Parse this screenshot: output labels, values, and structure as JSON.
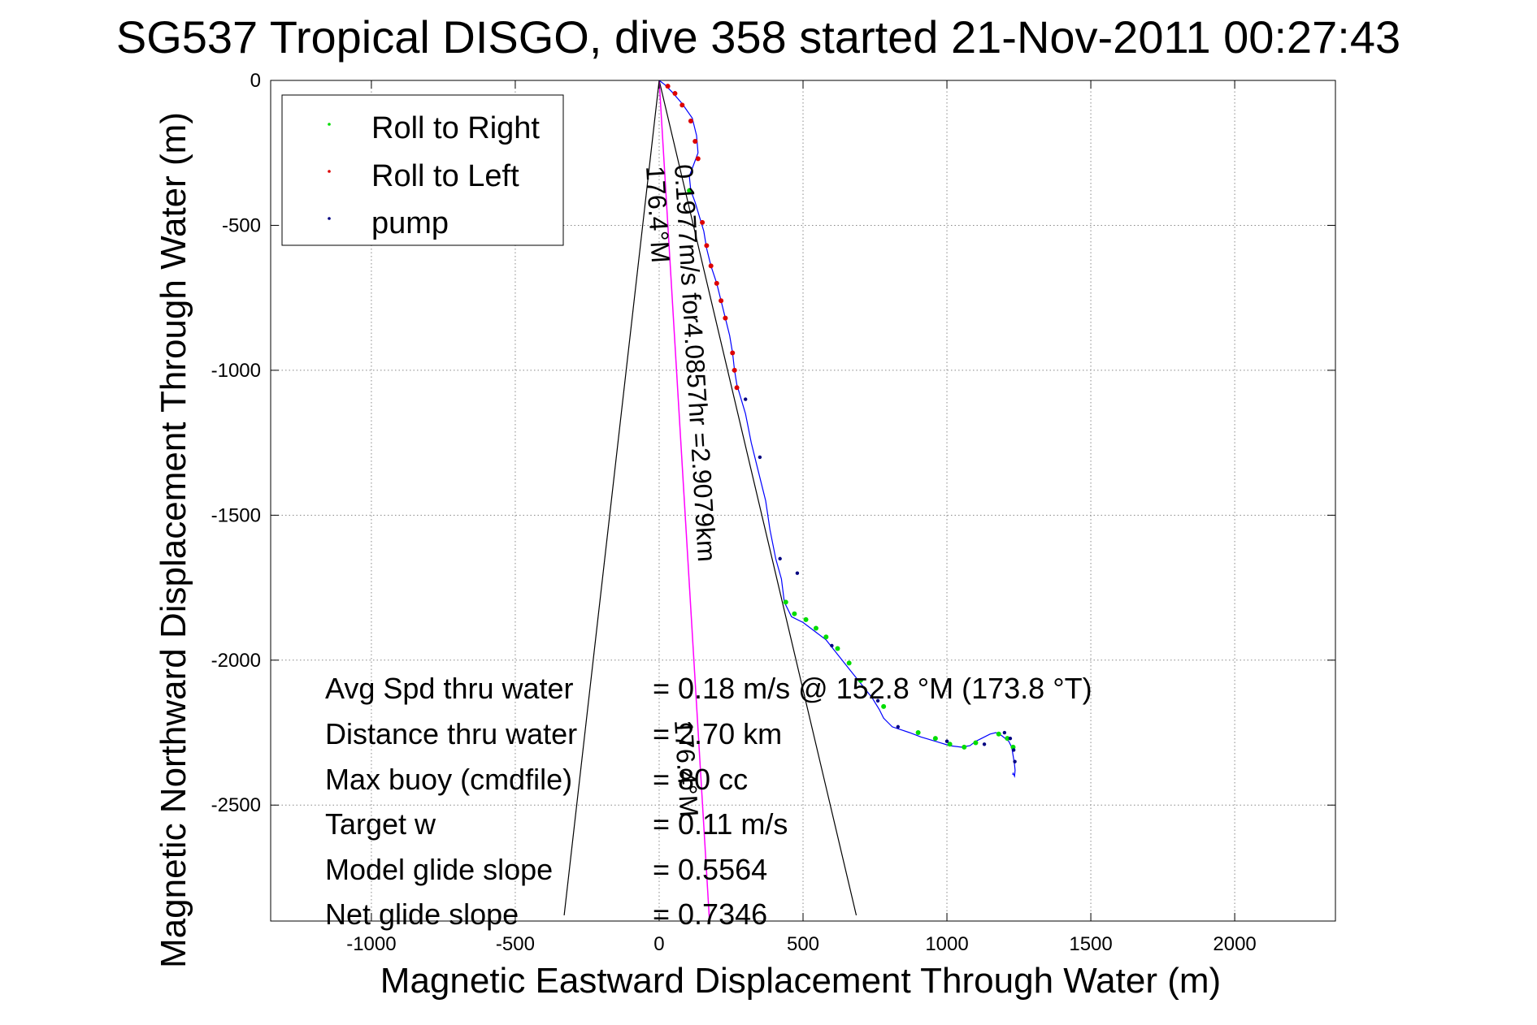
{
  "chart_data": {
    "type": "line",
    "title": "SG537 Tropical DISGO, dive 358 started 21-Nov-2011 00:27:43",
    "xlabel": "Magnetic Eastward Displacement Through Water (m)",
    "ylabel": "Magnetic Northward Displacement Through Water (m)",
    "xlim": [
      -1350,
      2350
    ],
    "ylim": [
      -2900,
      0
    ],
    "xticks": [
      -1000,
      -500,
      0,
      500,
      1000,
      1500,
      2000
    ],
    "yticks": [
      0,
      -500,
      -1000,
      -1500,
      -2000,
      -2500
    ],
    "grid": true,
    "legend_position": "top-left",
    "legend": [
      {
        "label": "Roll to Right",
        "color": "#00dd00"
      },
      {
        "label": "Roll to Left",
        "color": "#dd0000"
      },
      {
        "label": "pump",
        "color": "#000080"
      }
    ],
    "track": {
      "name": "track",
      "color": "#0000ff",
      "x": [
        0,
        20,
        45,
        80,
        115,
        130,
        135,
        120,
        105,
        110,
        125,
        140,
        155,
        165,
        180,
        200,
        215,
        230,
        245,
        255,
        262,
        270,
        285,
        300,
        320,
        345,
        370,
        385,
        405,
        425,
        435,
        460,
        500,
        540,
        580,
        620,
        660,
        700,
        740,
        765,
        780,
        795,
        810,
        840,
        870,
        910,
        960,
        1010,
        1050,
        1080,
        1100,
        1120,
        1150,
        1170,
        1190,
        1215,
        1225,
        1230,
        1235,
        1237,
        1235,
        1230,
        1228
      ],
      "y": [
        0,
        -15,
        -40,
        -80,
        -130,
        -190,
        -250,
        -290,
        -330,
        -380,
        -420,
        -470,
        -520,
        -580,
        -640,
        -700,
        -760,
        -820,
        -880,
        -940,
        -1000,
        -1050,
        -1100,
        -1150,
        -1250,
        -1350,
        -1450,
        -1550,
        -1650,
        -1720,
        -1800,
        -1850,
        -1870,
        -1900,
        -1930,
        -1980,
        -2030,
        -2080,
        -2130,
        -2170,
        -2200,
        -2215,
        -2230,
        -2240,
        -2250,
        -2265,
        -2280,
        -2295,
        -2300,
        -2295,
        -2280,
        -2270,
        -2255,
        -2250,
        -2260,
        -2280,
        -2300,
        -2330,
        -2360,
        -2380,
        -2400,
        -2390,
        -2395
      ]
    },
    "roll_left_points": {
      "x": [
        30,
        55,
        80,
        110,
        125,
        135,
        150,
        165,
        180,
        200,
        215,
        230,
        255,
        262,
        270
      ],
      "y": [
        -20,
        -45,
        -85,
        -140,
        -210,
        -270,
        -490,
        -570,
        -640,
        -700,
        -760,
        -820,
        -940,
        -1000,
        -1060
      ]
    },
    "roll_right_points": {
      "x": [
        105,
        440,
        470,
        510,
        545,
        580,
        620,
        660,
        700,
        780,
        900,
        960,
        1010,
        1060,
        1100,
        1180,
        1210,
        1230
      ],
      "y": [
        -380,
        -1800,
        -1840,
        -1860,
        -1890,
        -1920,
        -1960,
        -2010,
        -2070,
        -2160,
        -2250,
        -2270,
        -2290,
        -2300,
        -2285,
        -2255,
        -2270,
        -2300
      ]
    },
    "pump_points": {
      "x": [
        300,
        350,
        420,
        480,
        600,
        760,
        830,
        1000,
        1130,
        1200,
        1220,
        1232,
        1236
      ],
      "y": [
        -1100,
        -1300,
        -1650,
        -1700,
        -1950,
        -2140,
        -2230,
        -2280,
        -2290,
        -2250,
        -2270,
        -2310,
        -2350
      ]
    },
    "current_line": {
      "name": "current",
      "color": "#ff00ff",
      "x": [
        0,
        175
      ],
      "y": [
        0,
        -2900
      ]
    },
    "cone_lines": [
      {
        "x": [
          0,
          -330
        ],
        "y": [
          0,
          -2880
        ]
      },
      {
        "x": [
          0,
          685
        ],
        "y": [
          0,
          -2880
        ]
      }
    ],
    "annotations": {
      "current_label_line1": "0.1977m/s for4.0857hr =2.9079km",
      "current_label_line2": "176.4°M",
      "current_label_end": "176.4°M"
    },
    "stats": [
      {
        "label": "Avg Spd thru water",
        "value": "=  0.18 m/s @ 152.8 °M (173.8 °T)"
      },
      {
        "label": "Distance thru water",
        "value": "= 2.70 km"
      },
      {
        "label": "Max buoy (cmdfile)",
        "value": "= 80 cc"
      },
      {
        "label": "Target w",
        "value": "= 0.11 m/s"
      },
      {
        "label": "Model glide slope",
        "value": "= 0.5564"
      },
      {
        "label": "Net glide slope",
        "value": "= 0.7346"
      }
    ]
  }
}
